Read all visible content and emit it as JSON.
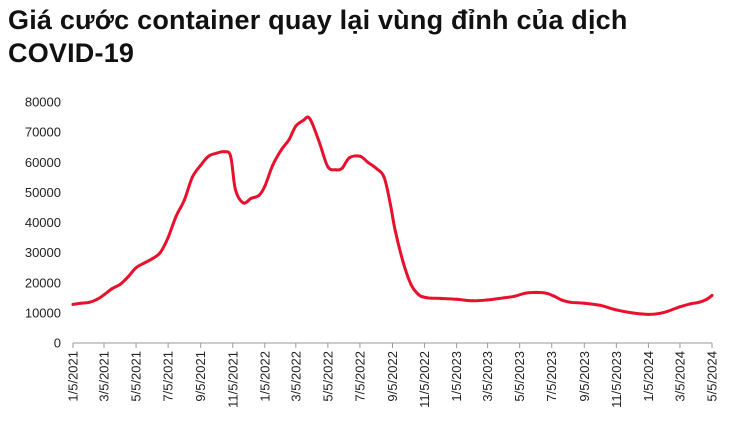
{
  "headline": "Giá cước container quay lại vùng đỉnh của dịch COVID-19",
  "chart_data": {
    "type": "line",
    "title": "",
    "xlabel": "",
    "ylabel": "",
    "ylim": [
      0,
      80000
    ],
    "yticks": [
      0,
      10000,
      20000,
      30000,
      40000,
      50000,
      60000,
      70000,
      80000
    ],
    "xlim": [
      "2021-01-05",
      "2024-05-05"
    ],
    "xticks": [
      "1/5/2021",
      "3/5/2021",
      "5/5/2021",
      "7/5/2021",
      "9/5/2021",
      "11/5/2021",
      "1/5/2022",
      "3/5/2022",
      "5/5/2022",
      "7/5/2022",
      "9/5/2022",
      "11/5/2022",
      "1/5/2023",
      "3/5/2023",
      "5/5/2023",
      "7/5/2023",
      "9/5/2023",
      "11/5/2023",
      "1/5/2024",
      "3/5/2024",
      "5/5/2024"
    ],
    "grid": false,
    "legend": "none",
    "series": [
      {
        "color": "#e8112d",
        "points": [
          [
            "2021-01-05",
            12800
          ],
          [
            "2021-01-20",
            13200
          ],
          [
            "2021-02-05",
            13500
          ],
          [
            "2021-02-20",
            14500
          ],
          [
            "2021-03-05",
            16000
          ],
          [
            "2021-03-20",
            18000
          ],
          [
            "2021-04-05",
            19500
          ],
          [
            "2021-04-20",
            22000
          ],
          [
            "2021-05-05",
            25000
          ],
          [
            "2021-05-20",
            26500
          ],
          [
            "2021-06-05",
            28000
          ],
          [
            "2021-06-20",
            30000
          ],
          [
            "2021-07-05",
            35000
          ],
          [
            "2021-07-20",
            42000
          ],
          [
            "2021-08-05",
            47500
          ],
          [
            "2021-08-20",
            55000
          ],
          [
            "2021-09-05",
            59000
          ],
          [
            "2021-09-20",
            62000
          ],
          [
            "2021-10-05",
            63000
          ],
          [
            "2021-10-20",
            63500
          ],
          [
            "2021-11-01",
            62000
          ],
          [
            "2021-11-10",
            51000
          ],
          [
            "2021-11-25",
            46500
          ],
          [
            "2021-12-10",
            48000
          ],
          [
            "2021-12-25",
            49000
          ],
          [
            "2022-01-05",
            52000
          ],
          [
            "2022-01-20",
            59000
          ],
          [
            "2022-02-05",
            64000
          ],
          [
            "2022-02-20",
            67500
          ],
          [
            "2022-03-05",
            72000
          ],
          [
            "2022-03-20",
            74000
          ],
          [
            "2022-03-28",
            75000
          ],
          [
            "2022-04-05",
            73000
          ],
          [
            "2022-04-20",
            66000
          ],
          [
            "2022-05-05",
            58500
          ],
          [
            "2022-05-20",
            57500
          ],
          [
            "2022-06-01",
            58000
          ],
          [
            "2022-06-15",
            61500
          ],
          [
            "2022-07-05",
            62000
          ],
          [
            "2022-07-20",
            60000
          ],
          [
            "2022-08-05",
            58000
          ],
          [
            "2022-08-20",
            55000
          ],
          [
            "2022-09-01",
            46000
          ],
          [
            "2022-09-10",
            37500
          ],
          [
            "2022-09-25",
            27000
          ],
          [
            "2022-10-10",
            19500
          ],
          [
            "2022-10-25",
            16000
          ],
          [
            "2022-11-10",
            15000
          ],
          [
            "2022-12-05",
            14800
          ],
          [
            "2023-01-05",
            14500
          ],
          [
            "2023-02-05",
            14000
          ],
          [
            "2023-03-05",
            14300
          ],
          [
            "2023-04-05",
            15000
          ],
          [
            "2023-04-25",
            15500
          ],
          [
            "2023-05-15",
            16500
          ],
          [
            "2023-06-05",
            16800
          ],
          [
            "2023-06-25",
            16500
          ],
          [
            "2023-07-10",
            15500
          ],
          [
            "2023-07-25",
            14200
          ],
          [
            "2023-08-10",
            13500
          ],
          [
            "2023-09-05",
            13200
          ],
          [
            "2023-10-05",
            12500
          ],
          [
            "2023-11-05",
            11000
          ],
          [
            "2023-12-05",
            10000
          ],
          [
            "2024-01-05",
            9500
          ],
          [
            "2024-01-25",
            9800
          ],
          [
            "2024-02-10",
            10500
          ],
          [
            "2024-03-05",
            12000
          ],
          [
            "2024-03-25",
            13000
          ],
          [
            "2024-04-10",
            13500
          ],
          [
            "2024-04-25",
            14500
          ],
          [
            "2024-05-05",
            15800
          ]
        ]
      }
    ]
  }
}
